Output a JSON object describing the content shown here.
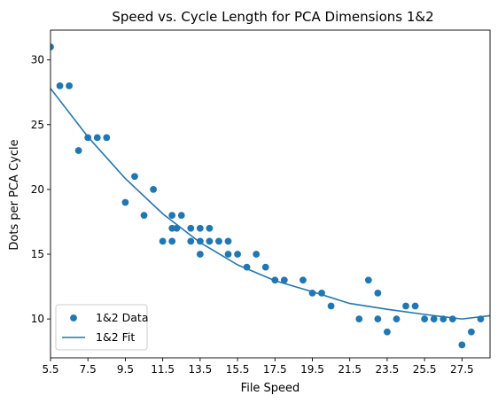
{
  "chart_data": {
    "type": "scatter",
    "title": "Speed vs. Cycle Length for PCA Dimensions 1&2",
    "xlabel": "File Speed",
    "ylabel": "Dots per PCA Cycle",
    "xlim": [
      5.5,
      29
    ],
    "ylim": [
      7,
      32.3
    ],
    "x_ticks": [
      5.5,
      7.5,
      9.5,
      11.5,
      13.5,
      15.5,
      17.5,
      19.5,
      21.5,
      23.5,
      25.5,
      27.5
    ],
    "x_tick_labels": [
      "5.5",
      "7.5",
      "9.5",
      "11.5",
      "13.5",
      "15.5",
      "17.5",
      "19.5",
      "21.5",
      "23.5",
      "25.5",
      "27.5"
    ],
    "y_ticks": [
      10,
      15,
      20,
      25,
      30
    ],
    "y_tick_labels": [
      "10",
      "15",
      "20",
      "25",
      "30"
    ],
    "grid": false,
    "legend_position": "bottom-left",
    "color": "#1f77b4",
    "series": [
      {
        "name": "1&2 Data",
        "kind": "scatter",
        "points": [
          [
            5.5,
            31
          ],
          [
            6,
            28
          ],
          [
            6.5,
            28
          ],
          [
            7,
            23
          ],
          [
            7.5,
            24
          ],
          [
            8,
            24
          ],
          [
            8.5,
            24
          ],
          [
            9.5,
            19
          ],
          [
            10,
            21
          ],
          [
            10.5,
            18
          ],
          [
            11,
            20
          ],
          [
            11.5,
            16
          ],
          [
            12,
            18
          ],
          [
            12,
            17
          ],
          [
            12,
            16
          ],
          [
            12.25,
            17
          ],
          [
            12.5,
            18
          ],
          [
            13,
            17
          ],
          [
            13,
            16
          ],
          [
            13.5,
            17
          ],
          [
            13.5,
            16
          ],
          [
            13.5,
            15
          ],
          [
            14,
            17
          ],
          [
            14,
            16
          ],
          [
            14.5,
            16
          ],
          [
            15,
            16
          ],
          [
            15,
            15
          ],
          [
            15.5,
            15
          ],
          [
            16,
            14
          ],
          [
            16.5,
            15
          ],
          [
            17,
            14
          ],
          [
            17.5,
            13
          ],
          [
            18,
            13
          ],
          [
            19,
            13
          ],
          [
            19.5,
            12
          ],
          [
            20,
            12
          ],
          [
            20.5,
            11
          ],
          [
            22,
            10
          ],
          [
            22.5,
            13
          ],
          [
            23,
            12
          ],
          [
            23,
            10
          ],
          [
            23.5,
            9
          ],
          [
            24,
            10
          ],
          [
            24.5,
            11
          ],
          [
            25,
            11
          ],
          [
            25.5,
            10
          ],
          [
            26,
            10
          ],
          [
            26.5,
            10
          ],
          [
            27,
            10
          ],
          [
            27.5,
            8
          ],
          [
            28,
            9
          ],
          [
            28.5,
            10
          ]
        ]
      },
      {
        "name": "1&2 Fit",
        "kind": "line",
        "points": [
          [
            5.5,
            27.8
          ],
          [
            7.5,
            24.06
          ],
          [
            9.5,
            20.84
          ],
          [
            11.5,
            18.12
          ],
          [
            13.5,
            15.9
          ],
          [
            15.5,
            14.18
          ],
          [
            17.5,
            12.96
          ],
          [
            19.5,
            12.1
          ],
          [
            21.5,
            11.2
          ],
          [
            23.5,
            10.75
          ],
          [
            25.5,
            10.35
          ],
          [
            27.5,
            10.0
          ],
          [
            29,
            10.25
          ]
        ]
      }
    ]
  }
}
